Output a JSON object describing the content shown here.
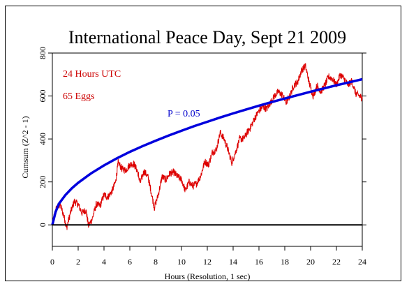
{
  "chart_data": {
    "type": "line",
    "title": "International Peace Day, Sept 21 2009",
    "xlabel": "Hours (Resolution, 1 sec)",
    "ylabel": "Cumsum (Z^2 - 1)",
    "xlim": [
      0,
      24
    ],
    "ylim": [
      -100,
      800
    ],
    "xticks": [
      "0",
      "2",
      "4",
      "6",
      "8",
      "10",
      "12",
      "14",
      "16",
      "18",
      "20",
      "22",
      "24"
    ],
    "yticks": [
      "0",
      "200",
      "400",
      "600",
      "800"
    ],
    "annotations": [
      {
        "text": "24 Hours UTC",
        "color": "#cc0000"
      },
      {
        "text": "65 Eggs",
        "color": "#cc0000"
      },
      {
        "text": "P = 0.05",
        "color": "#0000cc"
      }
    ],
    "series": [
      {
        "kind": "cumsum",
        "color": "#dd0000",
        "x": [
          0,
          0.3,
          0.6,
          0.9,
          1.1,
          1.4,
          1.7,
          2.0,
          2.3,
          2.6,
          2.8,
          3.1,
          3.4,
          3.7,
          4.0,
          4.3,
          4.6,
          4.9,
          5.1,
          5.4,
          5.7,
          6.0,
          6.3,
          6.6,
          6.8,
          7.1,
          7.4,
          7.6,
          7.9,
          8.2,
          8.5,
          8.8,
          9.1,
          9.4,
          9.7,
          10.0,
          10.3,
          10.6,
          10.9,
          11.2,
          11.5,
          11.8,
          12.1,
          12.4,
          12.7,
          13.0,
          13.3,
          13.6,
          13.9,
          14.2,
          14.5,
          14.8,
          15.1,
          15.4,
          15.7,
          16.0,
          16.3,
          16.6,
          16.9,
          17.2,
          17.5,
          17.8,
          18.1,
          18.4,
          18.7,
          19.0,
          19.3,
          19.6,
          19.9,
          20.2,
          20.5,
          20.8,
          21.1,
          21.4,
          21.7,
          22.0,
          22.3,
          22.6,
          22.9,
          23.2,
          23.5,
          23.8,
          24.0
        ],
        "y": [
          5,
          75,
          95,
          40,
          -15,
          55,
          110,
          95,
          55,
          70,
          -5,
          30,
          95,
          90,
          140,
          130,
          155,
          200,
          290,
          260,
          255,
          280,
          285,
          250,
          195,
          250,
          225,
          170,
          80,
          140,
          225,
          210,
          240,
          245,
          225,
          210,
          160,
          200,
          180,
          195,
          230,
          295,
          280,
          340,
          350,
          430,
          400,
          350,
          290,
          340,
          400,
          400,
          430,
          460,
          500,
          530,
          550,
          540,
          570,
          600,
          620,
          605,
          570,
          600,
          650,
          665,
          720,
          740,
          660,
          600,
          650,
          620,
          650,
          690,
          680,
          650,
          700,
          680,
          650,
          670,
          610,
          600,
          590
        ]
      },
      {
        "kind": "p-envelope",
        "name": "P = 0.05",
        "color": "#0000dd",
        "x": [
          0,
          0.25,
          0.5,
          1,
          1.5,
          2,
          3,
          4,
          5,
          6,
          7,
          8,
          9,
          10,
          11,
          12,
          13,
          14,
          15,
          16,
          17,
          18,
          19,
          20,
          21,
          22,
          23,
          24
        ],
        "y": [
          0,
          60,
          98,
          138,
          170,
          196,
          240,
          277,
          310,
          340,
          367,
          392,
          416,
          438,
          460,
          480,
          500,
          519,
          537,
          555,
          572,
          588,
          604,
          620,
          635,
          650,
          664,
          678
        ]
      },
      {
        "kind": "zero-line",
        "color": "#000000",
        "x": [
          0,
          24
        ],
        "y": [
          0,
          0
        ]
      }
    ],
    "grid": false,
    "legend": "none"
  }
}
